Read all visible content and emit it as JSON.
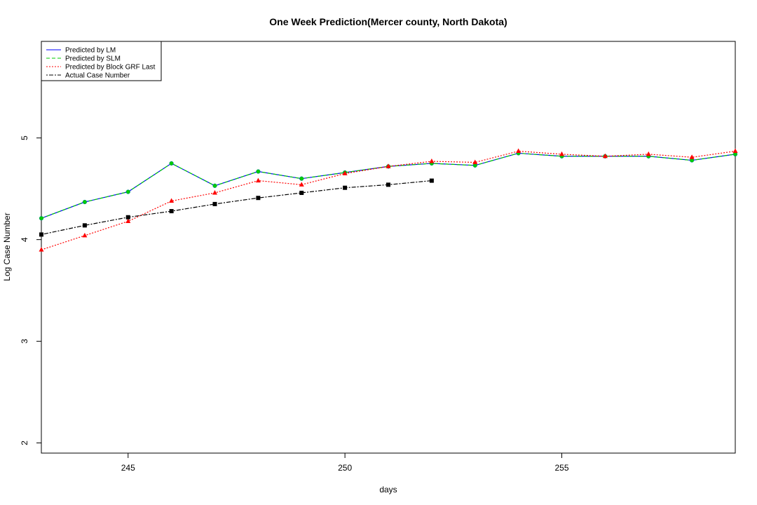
{
  "chart_data": {
    "type": "line",
    "title": "One Week Prediction(Mercer county, North Dakota)",
    "xlabel": "days",
    "ylabel": "Log Case Number",
    "xlim": [
      243,
      259
    ],
    "ylim": [
      1.9,
      5.95
    ],
    "xticks": [
      245,
      250,
      255
    ],
    "yticks": [
      2,
      3,
      4,
      5
    ],
    "grid": false,
    "legend_position": "top-left",
    "series": [
      {
        "name": "Predicted by LM",
        "color": "#0000ff",
        "line_style": "solid",
        "marker": "circle",
        "x": [
          243,
          244,
          245,
          246,
          247,
          248,
          249,
          250,
          251,
          252,
          253,
          254,
          255,
          256,
          257,
          258,
          259
        ],
        "y": [
          4.21,
          4.37,
          4.47,
          4.75,
          4.53,
          4.67,
          4.6,
          4.66,
          4.72,
          4.75,
          4.73,
          4.85,
          4.82,
          4.82,
          4.82,
          4.78,
          4.84
        ]
      },
      {
        "name": "Predicted by SLM",
        "color": "#00cd00",
        "line_style": "dashed",
        "marker": "circle",
        "x": [
          243,
          244,
          245,
          246,
          247,
          248,
          249,
          250,
          251,
          252,
          253,
          254,
          255,
          256,
          257,
          258,
          259
        ],
        "y": [
          4.21,
          4.37,
          4.47,
          4.75,
          4.53,
          4.67,
          4.6,
          4.66,
          4.72,
          4.75,
          4.73,
          4.85,
          4.82,
          4.82,
          4.82,
          4.78,
          4.84
        ]
      },
      {
        "name": "Predicted by Block GRF Last",
        "color": "#ff0000",
        "line_style": "dotted",
        "marker": "triangle",
        "x": [
          243,
          244,
          245,
          246,
          247,
          248,
          249,
          250,
          251,
          252,
          253,
          254,
          255,
          256,
          257,
          258,
          259
        ],
        "y": [
          3.9,
          4.04,
          4.18,
          4.38,
          4.46,
          4.58,
          4.54,
          4.65,
          4.72,
          4.77,
          4.76,
          4.87,
          4.84,
          4.82,
          4.84,
          4.81,
          4.87
        ]
      },
      {
        "name": "Actual Case Number",
        "color": "#000000",
        "line_style": "dotdash",
        "marker": "square",
        "x": [
          243,
          244,
          245,
          246,
          247,
          248,
          249,
          250,
          251,
          252
        ],
        "y": [
          4.05,
          4.14,
          4.22,
          4.28,
          4.35,
          4.41,
          4.46,
          4.51,
          4.54,
          4.58
        ]
      }
    ]
  }
}
